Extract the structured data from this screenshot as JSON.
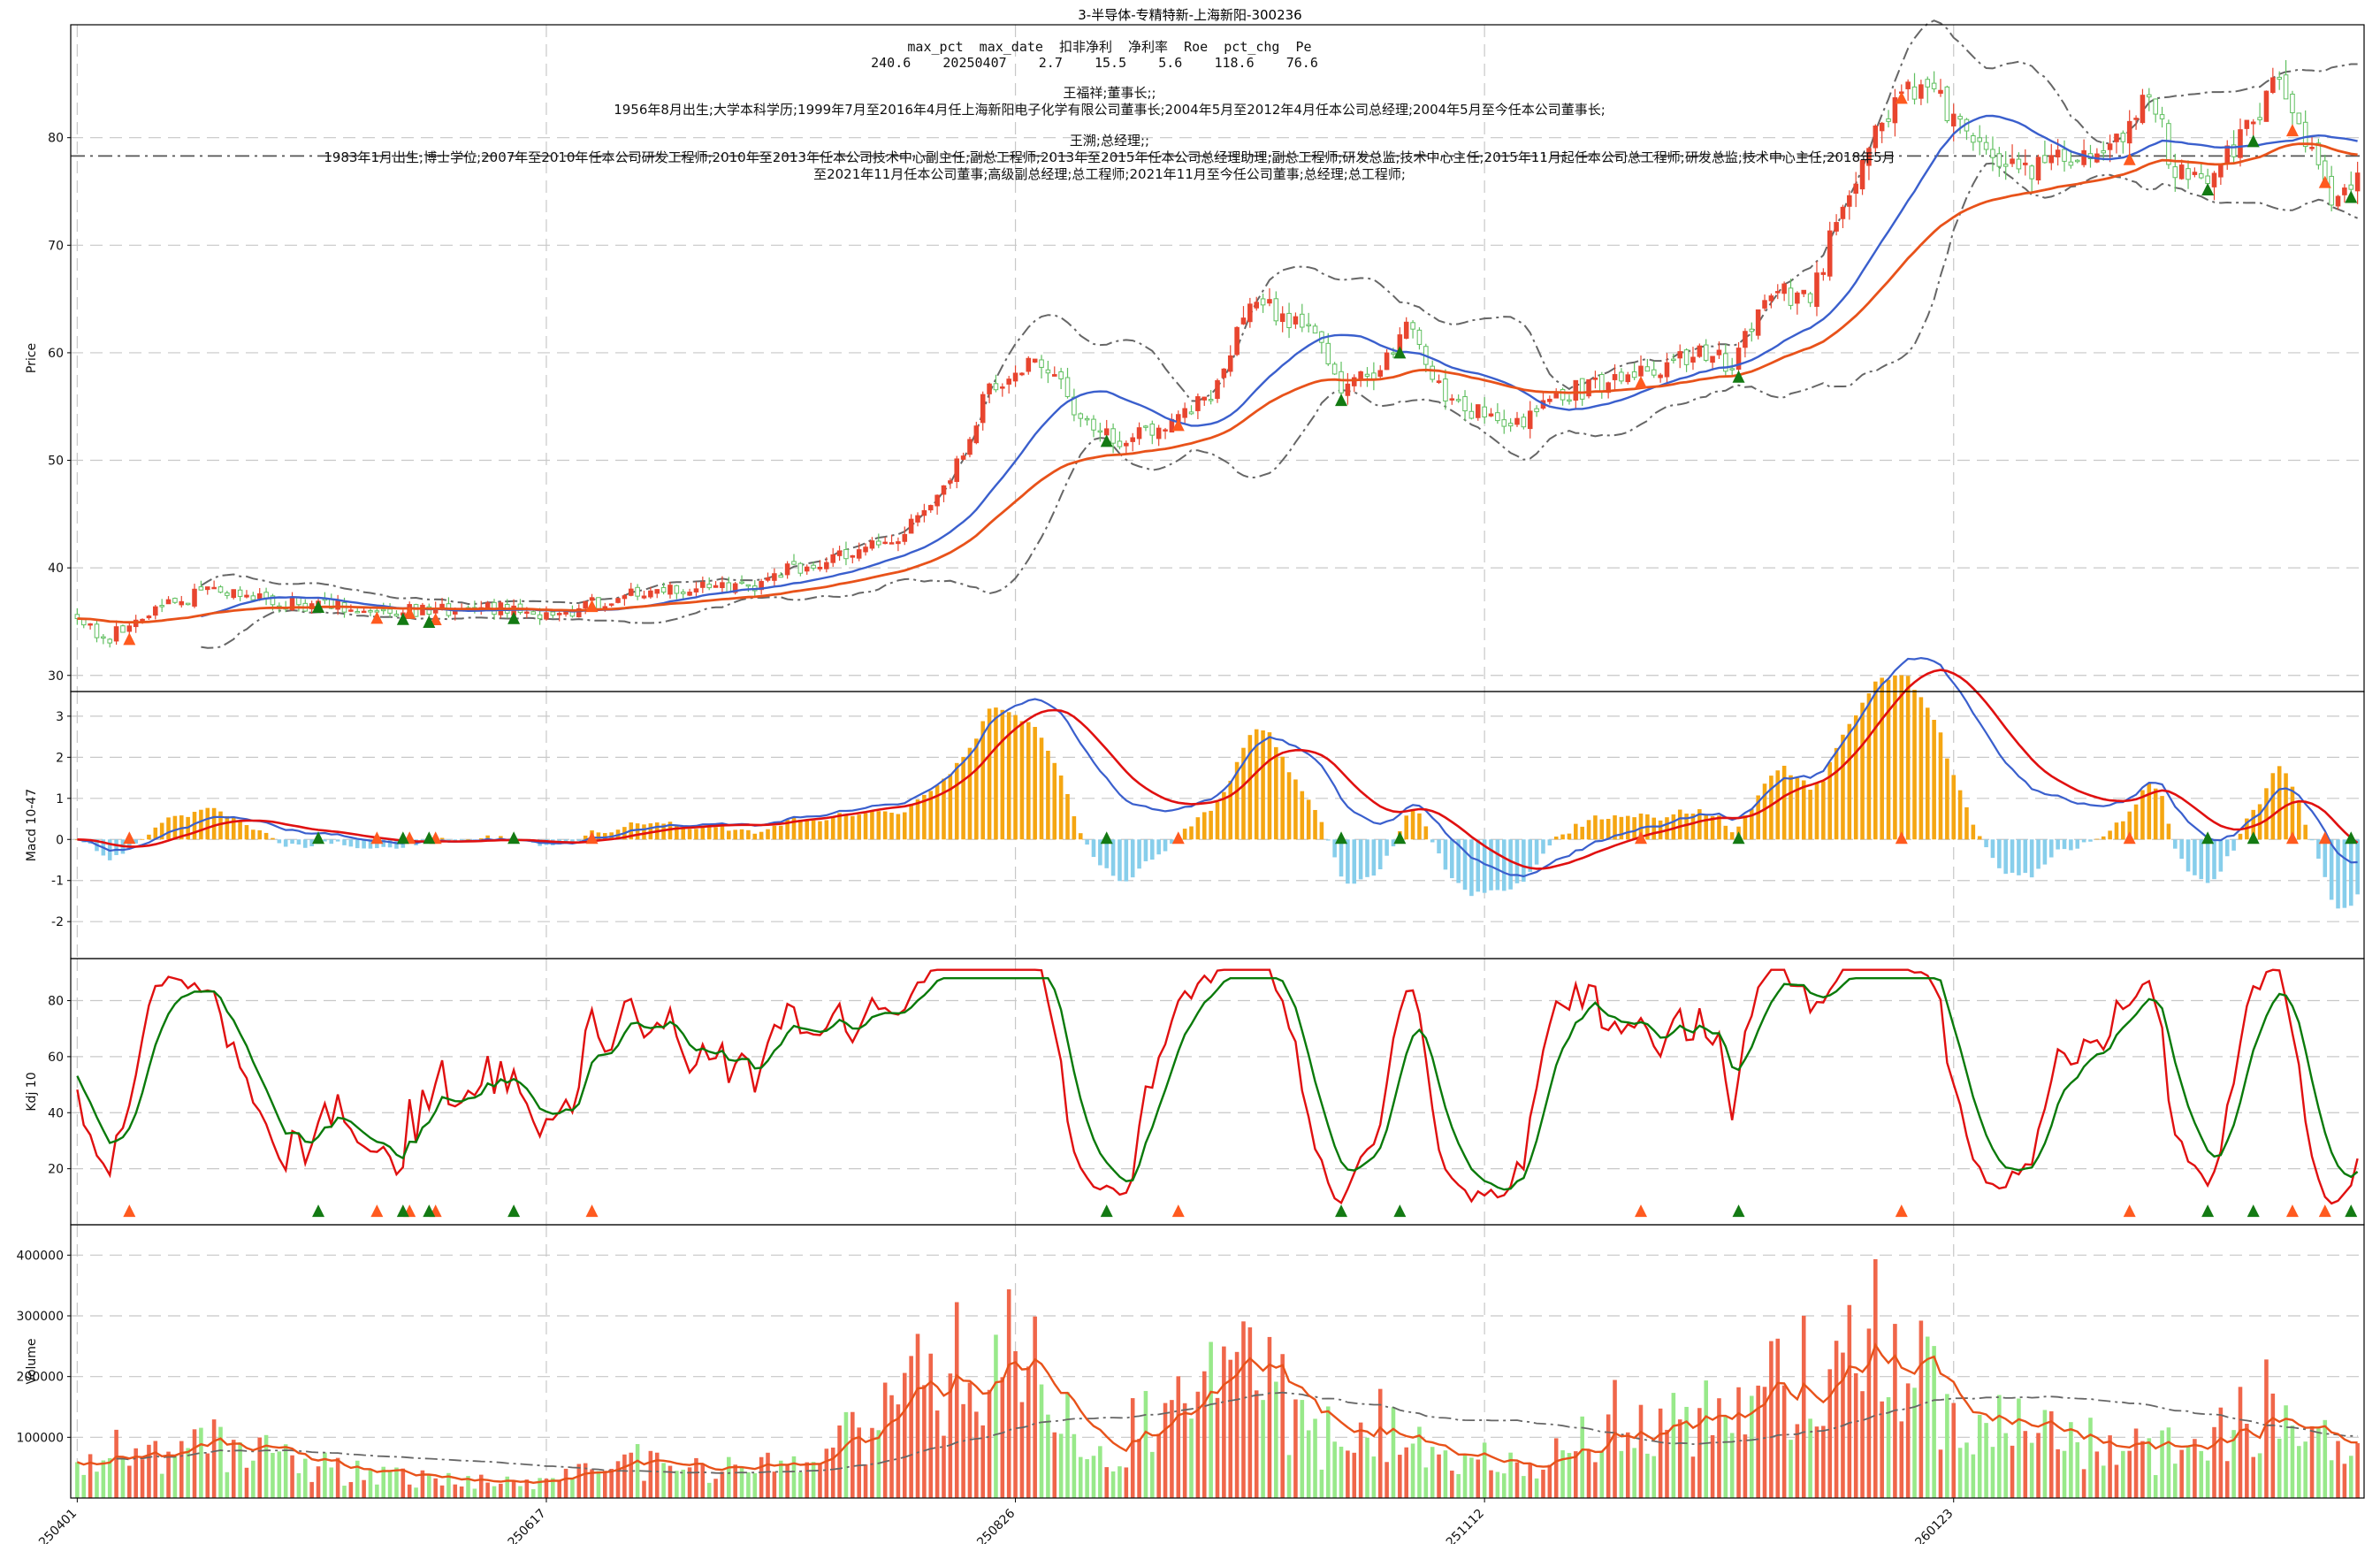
{
  "chart_data": {
    "type": "line",
    "title": "3-半导体-专精特新-上海新阳-300236",
    "header": {
      "table_header": "max_pct  max_date  扣非净利  净利率  Roe  pct_chg  Pe",
      "table_values": "240.6    20250407    2.7    15.5    5.6    118.6    76.6",
      "person1_title": "王福祥;董事长;;",
      "person1_bio": "1956年8月出生;大学本科学历;1999年7月至2016年4月任上海新阳电子化学有限公司董事长;2004年5月至2012年4月任本公司总经理;2004年5月至今任本公司董事长;",
      "person2_title": "王溯;总经理;;",
      "person2_bio_line1": "1983年1月出生;博士学位;2007年至2010年任本公司研发工程师;2010年至2013年任本公司技术中心副主任;副总工程师;2013年至2015年任本公司总经理助理;副总工程师;研发总监;技术中心主任;2015年11月起任本公司总工程师;研发总监;技术中心主任;2018年5月",
      "person2_bio_line2": "至2021年11月任本公司董事;高级副总经理;总工程师;2021年11月至今任公司董事;总经理;总工程师;"
    },
    "x_ticks": [
      {
        "index": 0,
        "label": "250401"
      },
      {
        "index": 72,
        "label": "250617"
      },
      {
        "index": 144,
        "label": "250826"
      },
      {
        "index": 216,
        "label": "251112"
      },
      {
        "index": 288,
        "label": "260123"
      }
    ],
    "n_bars": 351,
    "panels": {
      "price": {
        "ylabel": "Price",
        "ylim": [
          28.5,
          90.5
        ],
        "yticks": [
          30,
          40,
          50,
          60,
          70,
          80
        ],
        "ref_level": 78.3,
        "price_anchors": [
          [
            0,
            35.5
          ],
          [
            4,
            33
          ],
          [
            8,
            35
          ],
          [
            14,
            36.5
          ],
          [
            20,
            38
          ],
          [
            28,
            37
          ],
          [
            36,
            36.5
          ],
          [
            46,
            36.2
          ],
          [
            56,
            36
          ],
          [
            66,
            36.3
          ],
          [
            72,
            35.5
          ],
          [
            76,
            36
          ],
          [
            86,
            38
          ],
          [
            94,
            38.2
          ],
          [
            104,
            38.5
          ],
          [
            110,
            40
          ],
          [
            118,
            41.5
          ],
          [
            126,
            43
          ],
          [
            134,
            48
          ],
          [
            140,
            57
          ],
          [
            146,
            59
          ],
          [
            150,
            58
          ],
          [
            154,
            54
          ],
          [
            160,
            52
          ],
          [
            166,
            53
          ],
          [
            172,
            55
          ],
          [
            176,
            58
          ],
          [
            180,
            65
          ],
          [
            184,
            64
          ],
          [
            190,
            61
          ],
          [
            194,
            57
          ],
          [
            200,
            58
          ],
          [
            204,
            63
          ],
          [
            208,
            57
          ],
          [
            214,
            54.5
          ],
          [
            220,
            53
          ],
          [
            226,
            56
          ],
          [
            234,
            57
          ],
          [
            240,
            58
          ],
          [
            248,
            60
          ],
          [
            254,
            59
          ],
          [
            260,
            66
          ],
          [
            266,
            65
          ],
          [
            270,
            72
          ],
          [
            276,
            80
          ],
          [
            282,
            85
          ],
          [
            286,
            84
          ],
          [
            290,
            80
          ],
          [
            296,
            78
          ],
          [
            302,
            77
          ],
          [
            306,
            78
          ],
          [
            314,
            80
          ],
          [
            318,
            84
          ],
          [
            322,
            77
          ],
          [
            326,
            76
          ],
          [
            332,
            80
          ],
          [
            338,
            85
          ],
          [
            342,
            79
          ],
          [
            346,
            75
          ],
          [
            350,
            76
          ]
        ],
        "bull_color": "#e8452f",
        "bear_color": "#5fbf5f",
        "ma_fast_color": "#3a5fcd",
        "ma_slow_color": "#e8521a",
        "band_color": "#666666"
      },
      "macd": {
        "ylabel": "Macd 10-47",
        "ylim": [
          -2.9,
          3.6
        ],
        "yticks": [
          -2,
          -1,
          0,
          1,
          2,
          3
        ],
        "pos_color": "#f5a612",
        "neg_color": "#87ceeb",
        "dif_color": "#3a5fcd",
        "dea_color": "#e01010"
      },
      "kdj": {
        "ylabel": "Kdj 10",
        "ylim": [
          0,
          95
        ],
        "yticks": [
          20,
          40,
          60,
          80
        ],
        "k_color": "#e01010",
        "d_color": "#0a7a0a"
      },
      "volume": {
        "ylabel": "Volume",
        "ylim": [
          0,
          450000
        ],
        "yticks": [
          100000,
          200000,
          300000,
          400000
        ],
        "ytick_labels": [
          "100000",
          "200000",
          "300000",
          "400000"
        ],
        "vol_anchors": [
          [
            0,
            45000
          ],
          [
            6,
            90000
          ],
          [
            12,
            70000
          ],
          [
            20,
            90000
          ],
          [
            30,
            70000
          ],
          [
            40,
            45000
          ],
          [
            50,
            35000
          ],
          [
            60,
            30000
          ],
          [
            70,
            20000
          ],
          [
            78,
            40000
          ],
          [
            86,
            60000
          ],
          [
            96,
            50000
          ],
          [
            104,
            50000
          ],
          [
            112,
            60000
          ],
          [
            118,
            100000
          ],
          [
            126,
            160000
          ],
          [
            134,
            230000
          ],
          [
            140,
            260000
          ],
          [
            146,
            230000
          ],
          [
            152,
            120000
          ],
          [
            158,
            90000
          ],
          [
            164,
            120000
          ],
          [
            172,
            160000
          ],
          [
            178,
            230000
          ],
          [
            184,
            170000
          ],
          [
            190,
            100000
          ],
          [
            196,
            120000
          ],
          [
            202,
            120000
          ],
          [
            210,
            70000
          ],
          [
            218,
            60000
          ],
          [
            224,
            45000
          ],
          [
            230,
            110000
          ],
          [
            236,
            140000
          ],
          [
            242,
            110000
          ],
          [
            250,
            130000
          ],
          [
            256,
            140000
          ],
          [
            262,
            200000
          ],
          [
            268,
            250000
          ],
          [
            272,
            300000
          ],
          [
            276,
            330000
          ],
          [
            280,
            250000
          ],
          [
            286,
            160000
          ],
          [
            292,
            140000
          ],
          [
            300,
            100000
          ],
          [
            310,
            90000
          ],
          [
            320,
            80000
          ],
          [
            330,
            110000
          ],
          [
            336,
            160000
          ],
          [
            342,
            110000
          ],
          [
            350,
            70000
          ]
        ],
        "vol_ma_color": "#e8521a",
        "vol_ma_long_color": "#666666"
      }
    },
    "signals": {
      "up_color": "#ff5a1f",
      "down_color": "#137a13",
      "up_indices": [
        8,
        46,
        51,
        55,
        79,
        169,
        240,
        280,
        315,
        340,
        345
      ],
      "down_indices": [
        37,
        50,
        54,
        67,
        158,
        194,
        203,
        255,
        327,
        334,
        349
      ]
    }
  }
}
